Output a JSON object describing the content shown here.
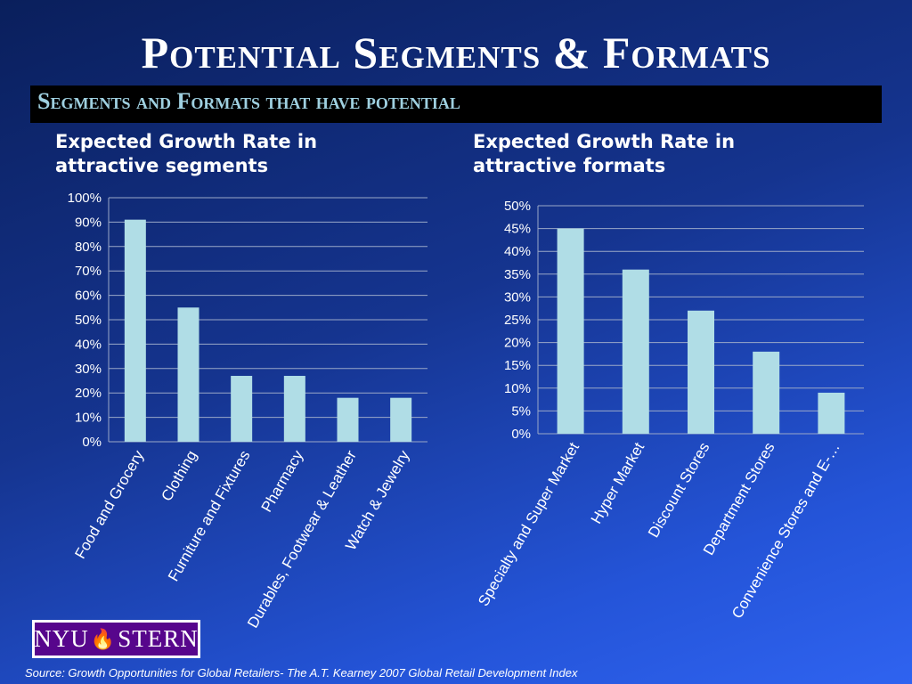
{
  "slide": {
    "title": "Potential Segments & Formats",
    "subtitle": "Segments and Formats that have potential",
    "source": "Source: Growth Opportunities for Global Retailers- The A.T. Kearney 2007 Global Retail Development Index",
    "logo": {
      "left": "NYU",
      "right": "STERN",
      "icon": "torch-icon"
    }
  },
  "colors": {
    "bar": "#b0dde6",
    "text": "#ffffff",
    "grid": "#9aa8c8",
    "subtitle_bg": "#000000",
    "subtitle_text": "#9fd0e0"
  },
  "chart_data": [
    {
      "type": "bar",
      "title": "Expected Growth Rate in attractive segments",
      "title_lines": [
        "Expected Growth Rate in",
        "attractive segments"
      ],
      "categories": [
        "Food and Grocery",
        "Clothing",
        "Furniture and Fixtures",
        "Pharmacy",
        "Durables, Footwear & Leather",
        "Watch & Jewelry"
      ],
      "values": [
        0.91,
        0.55,
        0.27,
        0.27,
        0.18,
        0.18
      ],
      "ylim": [
        0,
        1.0
      ],
      "yticks": [
        "0%",
        "10%",
        "20%",
        "30%",
        "40%",
        "50%",
        "60%",
        "70%",
        "80%",
        "90%",
        "100%"
      ],
      "grid": true,
      "legend": "none"
    },
    {
      "type": "bar",
      "title": "Expected Growth Rate in attractive formats",
      "title_lines": [
        "Expected Growth Rate in",
        "attractive formats"
      ],
      "categories": [
        "Specialty and Super Market",
        "Hyper Market",
        "Discount Stores",
        "Department Stores",
        "Convenience Stores and E-…"
      ],
      "values": [
        0.45,
        0.36,
        0.27,
        0.18,
        0.09
      ],
      "ylim": [
        0,
        0.5
      ],
      "yticks": [
        "0%",
        "5%",
        "10%",
        "15%",
        "20%",
        "25%",
        "30%",
        "35%",
        "40%",
        "45%",
        "50%"
      ],
      "grid": true,
      "legend": "none"
    }
  ]
}
